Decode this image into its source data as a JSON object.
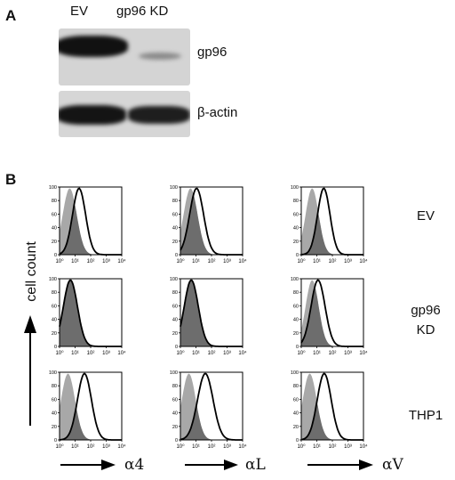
{
  "panel_a": {
    "letter": "A",
    "lanes": [
      "EV",
      "gp96 KD"
    ],
    "bands": [
      "gp96",
      "β-actin"
    ]
  },
  "panel_b": {
    "letter": "B",
    "y_axis_label": "cell count",
    "x_axis_labels": [
      "α4",
      "αL",
      "αV"
    ],
    "row_labels": [
      "EV",
      "gp96 KD",
      "THP1"
    ],
    "row_label_lines": [
      [
        "EV"
      ],
      [
        "gp96",
        "KD"
      ],
      [
        "THP1"
      ]
    ],
    "colors": {
      "shaded_histogram": "#a8a8a8",
      "overlap": "#6d6d6d",
      "outline": "#000000"
    }
  },
  "chart_data": {
    "type": "histogram-grid",
    "x_scale": "log",
    "xlim": [
      1,
      10000
    ],
    "ylim": [
      0,
      100
    ],
    "x_ticks": [
      "10⁰",
      "10¹",
      "10²",
      "10³",
      "10⁴"
    ],
    "y_ticks": [
      "0",
      "20",
      "40",
      "60",
      "80",
      "100"
    ],
    "rows": [
      "EV",
      "gp96 KD",
      "THP1"
    ],
    "columns": [
      "α4",
      "αL",
      "αV"
    ],
    "panels": [
      {
        "row": "EV",
        "column": "α4",
        "control": {
          "peak": 4.5,
          "width_decades": 0.45
        },
        "stained": {
          "peak": 18,
          "width_decades": 0.42
        }
      },
      {
        "row": "EV",
        "column": "αL",
        "control": {
          "peak": 4.5,
          "width_decades": 0.45
        },
        "stained": {
          "peak": 11,
          "width_decades": 0.45
        }
      },
      {
        "row": "EV",
        "column": "αV",
        "control": {
          "peak": 5,
          "width_decades": 0.42
        },
        "stained": {
          "peak": 28,
          "width_decades": 0.4
        }
      },
      {
        "row": "gp96 KD",
        "column": "α4",
        "control": {
          "peak": 4.5,
          "width_decades": 0.45
        },
        "stained": {
          "peak": 5,
          "width_decades": 0.45
        }
      },
      {
        "row": "gp96 KD",
        "column": "αL",
        "control": {
          "peak": 4.5,
          "width_decades": 0.45
        },
        "stained": {
          "peak": 5,
          "width_decades": 0.45
        }
      },
      {
        "row": "gp96 KD",
        "column": "αV",
        "control": {
          "peak": 5,
          "width_decades": 0.42
        },
        "stained": {
          "peak": 12,
          "width_decades": 0.45
        }
      },
      {
        "row": "THP1",
        "column": "α4",
        "control": {
          "peak": 3.5,
          "width_decades": 0.45
        },
        "stained": {
          "peak": 40,
          "width_decades": 0.45
        }
      },
      {
        "row": "THP1",
        "column": "αL",
        "control": {
          "peak": 3.5,
          "width_decades": 0.45
        },
        "stained": {
          "peak": 40,
          "width_decades": 0.5
        }
      },
      {
        "row": "THP1",
        "column": "αV",
        "control": {
          "peak": 3.5,
          "width_decades": 0.45
        },
        "stained": {
          "peak": 30,
          "width_decades": 0.45
        }
      }
    ]
  }
}
